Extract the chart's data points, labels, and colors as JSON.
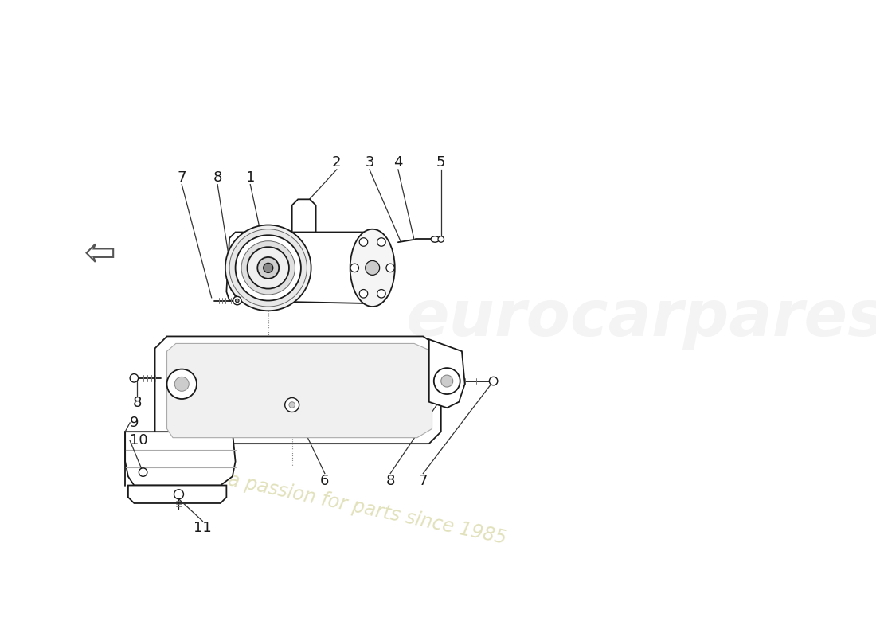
{
  "background_color": "#ffffff",
  "line_color": "#1a1a1a",
  "label_color": "#1a1a1a",
  "font_size": 13,
  "watermark_color": "#d4d4a0",
  "watermark_text": "a passion for parts since 1985"
}
